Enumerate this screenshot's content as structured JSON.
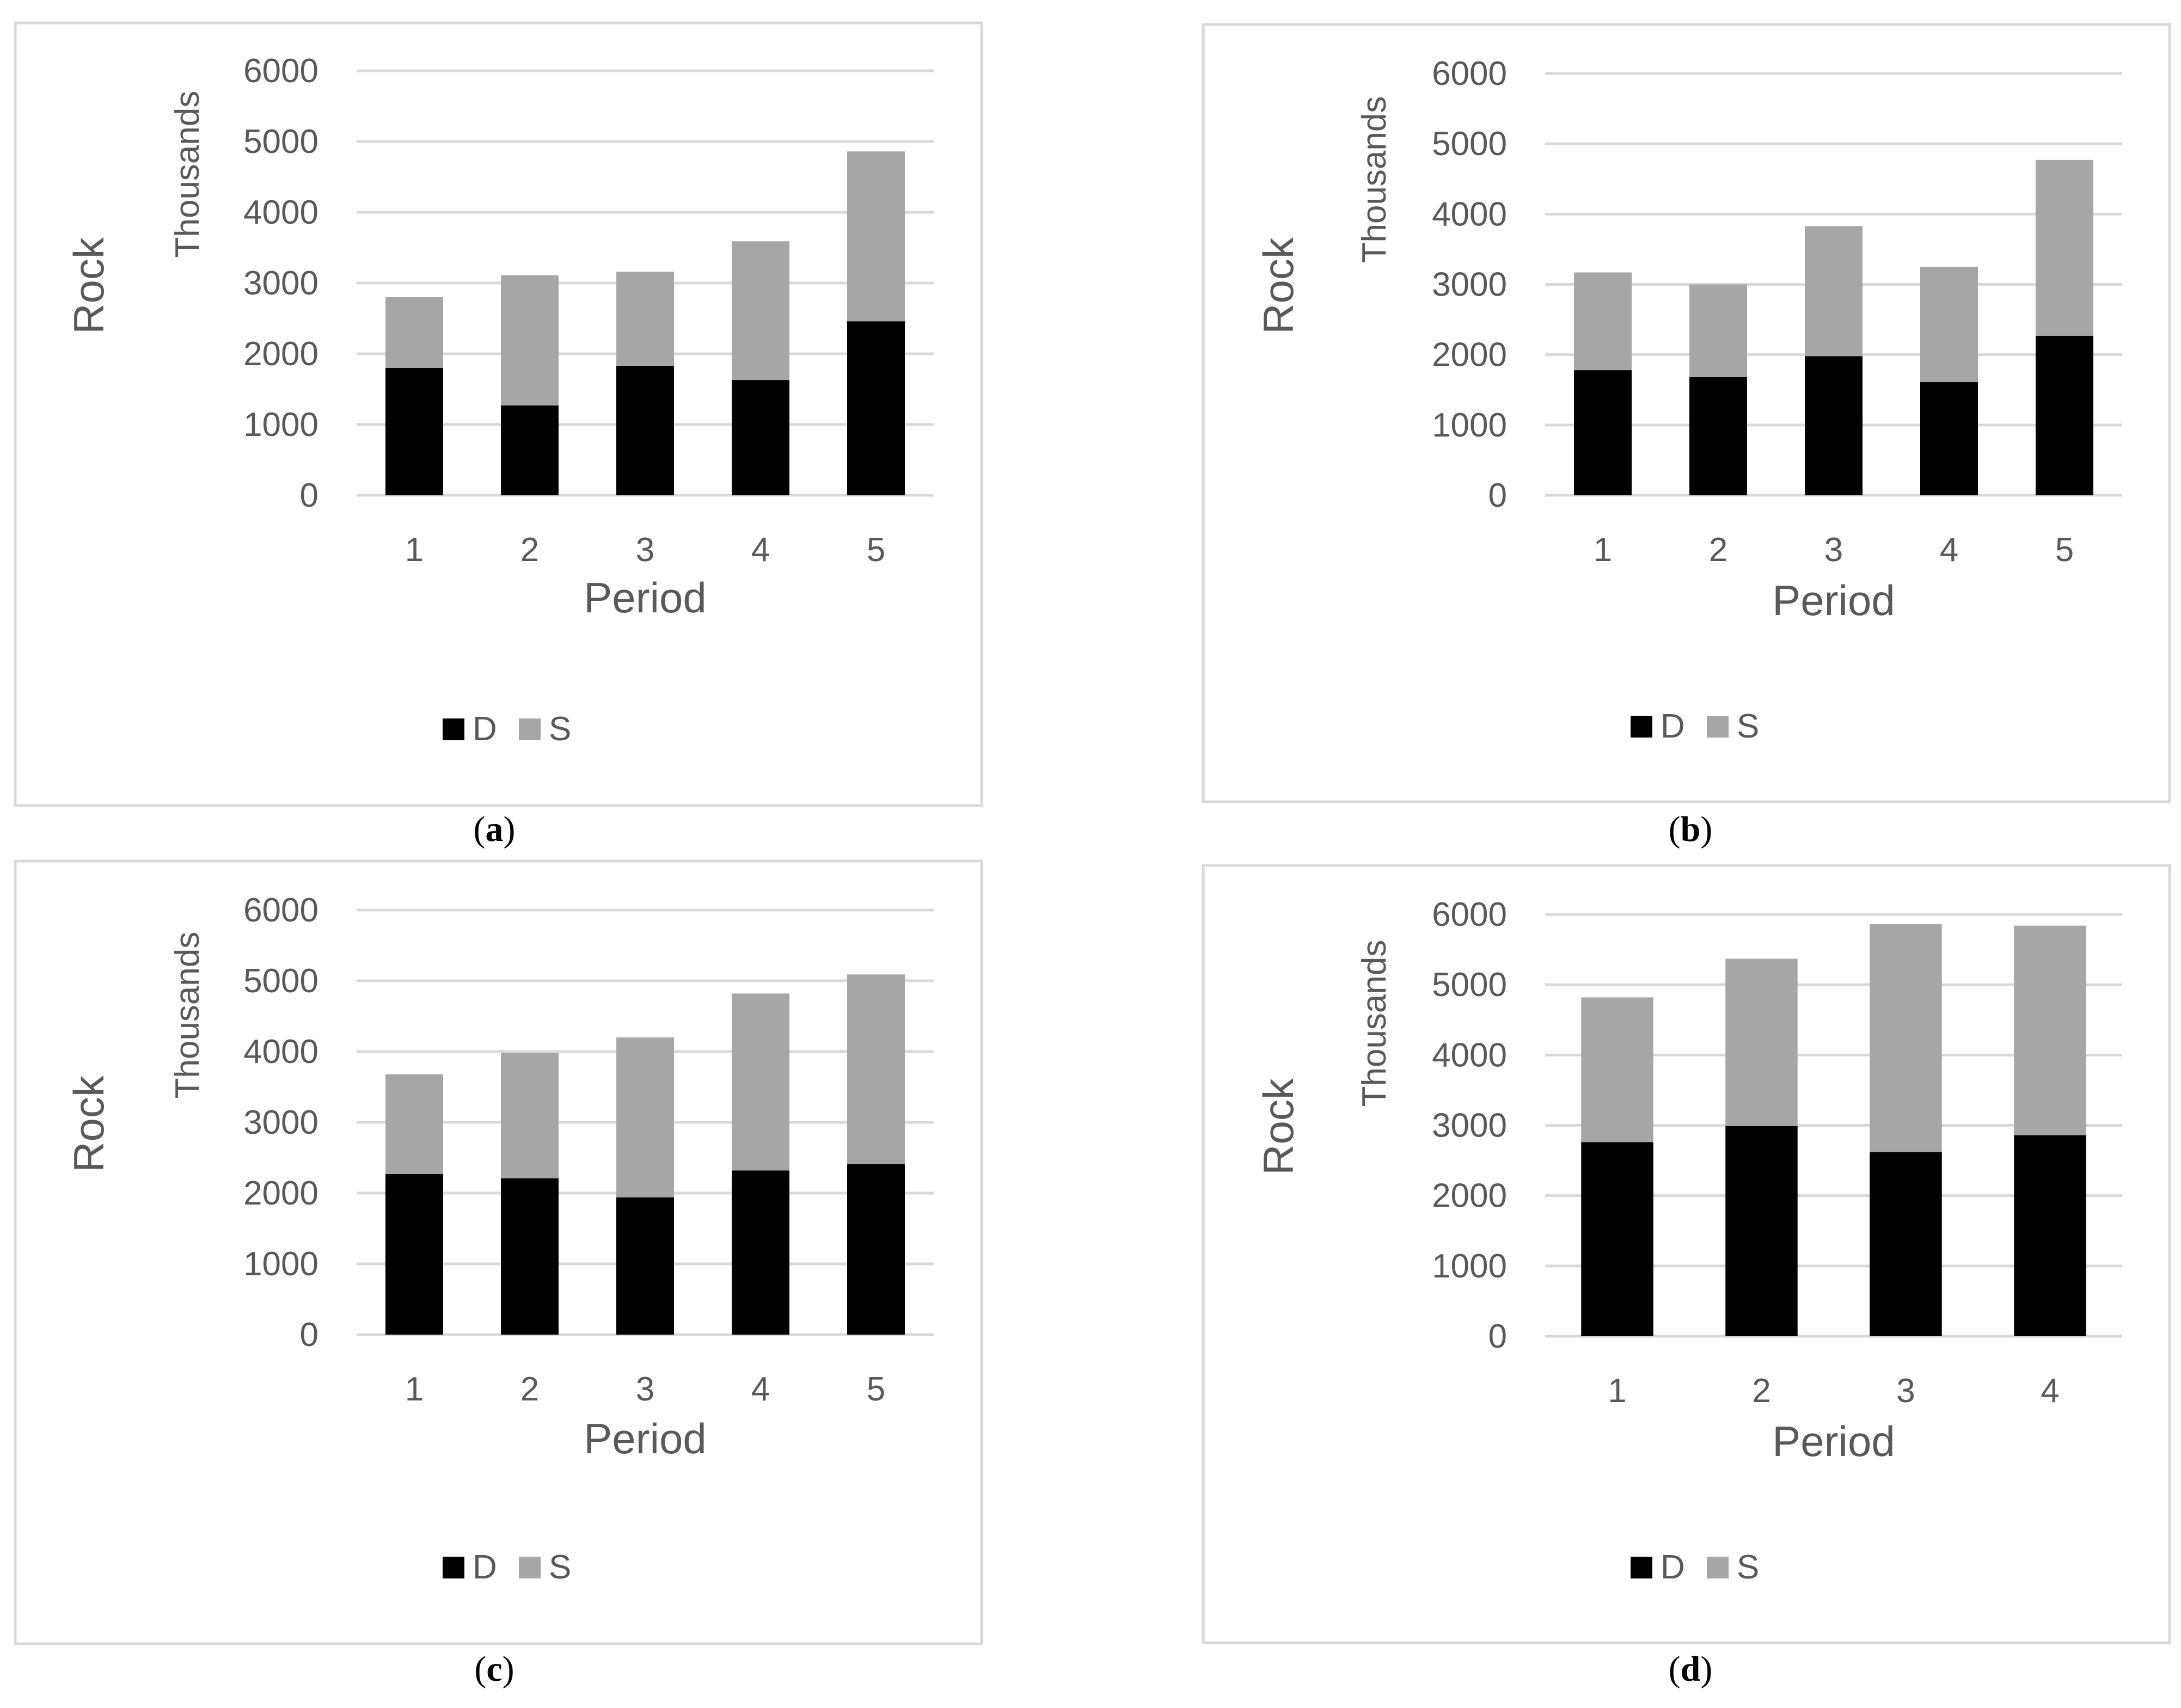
{
  "colors": {
    "D": "#000000",
    "S": "#a6a6a6"
  },
  "chart_data": [
    {
      "panel": "a",
      "type": "bar",
      "stacked": true,
      "categories": [
        "1",
        "2",
        "3",
        "4",
        "5"
      ],
      "series": [
        {
          "name": "D",
          "values": [
            1800,
            1270,
            1830,
            1630,
            2460
          ]
        },
        {
          "name": "S",
          "values": [
            1000,
            1840,
            1330,
            1960,
            2400
          ]
        }
      ],
      "xlabel": "Period",
      "ylabel": "Rock",
      "units_label": "Thousands",
      "ylim": [
        0,
        6000
      ],
      "yticks": [
        "0",
        "1000",
        "2000",
        "3000",
        "4000",
        "5000",
        "6000"
      ],
      "grid": true,
      "legend": "bottom",
      "caption_letter": "a",
      "caption_open": "(",
      "caption_close": ")"
    },
    {
      "panel": "b",
      "type": "bar",
      "stacked": true,
      "categories": [
        "1",
        "2",
        "3",
        "4",
        "5"
      ],
      "series": [
        {
          "name": "D",
          "values": [
            1780,
            1680,
            1980,
            1610,
            2270
          ]
        },
        {
          "name": "S",
          "values": [
            1390,
            1320,
            1850,
            1640,
            2500
          ]
        }
      ],
      "xlabel": "Period",
      "ylabel": "Rock",
      "units_label": "Thousands",
      "ylim": [
        0,
        6000
      ],
      "yticks": [
        "0",
        "1000",
        "2000",
        "3000",
        "4000",
        "5000",
        "6000"
      ],
      "grid": true,
      "legend": "bottom",
      "caption_letter": "b",
      "caption_open": "(",
      "caption_close": ")"
    },
    {
      "panel": "c",
      "type": "bar",
      "stacked": true,
      "categories": [
        "1",
        "2",
        "3",
        "4",
        "5"
      ],
      "series": [
        {
          "name": "D",
          "values": [
            2270,
            2210,
            1940,
            2320,
            2410
          ]
        },
        {
          "name": "S",
          "values": [
            1410,
            1770,
            2260,
            2500,
            2680
          ]
        }
      ],
      "xlabel": "Period",
      "ylabel": "Rock",
      "units_label": "Thousands",
      "ylim": [
        0,
        6000
      ],
      "yticks": [
        "0",
        "1000",
        "2000",
        "3000",
        "4000",
        "5000",
        "6000"
      ],
      "grid": true,
      "legend": "bottom",
      "caption_letter": "c",
      "caption_open": "(",
      "caption_close": ")"
    },
    {
      "panel": "d",
      "type": "bar",
      "stacked": true,
      "categories": [
        "1",
        "2",
        "3",
        "4"
      ],
      "series": [
        {
          "name": "D",
          "values": [
            2760,
            2990,
            2620,
            2860
          ]
        },
        {
          "name": "S",
          "values": [
            2060,
            2380,
            3240,
            2980
          ]
        }
      ],
      "xlabel": "Period",
      "ylabel": "Rock",
      "units_label": "Thousands",
      "ylim": [
        0,
        6000
      ],
      "yticks": [
        "0",
        "1000",
        "2000",
        "3000",
        "4000",
        "5000",
        "6000"
      ],
      "grid": true,
      "legend": "bottom",
      "caption_letter": "d",
      "caption_open": "(",
      "caption_close": ")"
    }
  ]
}
